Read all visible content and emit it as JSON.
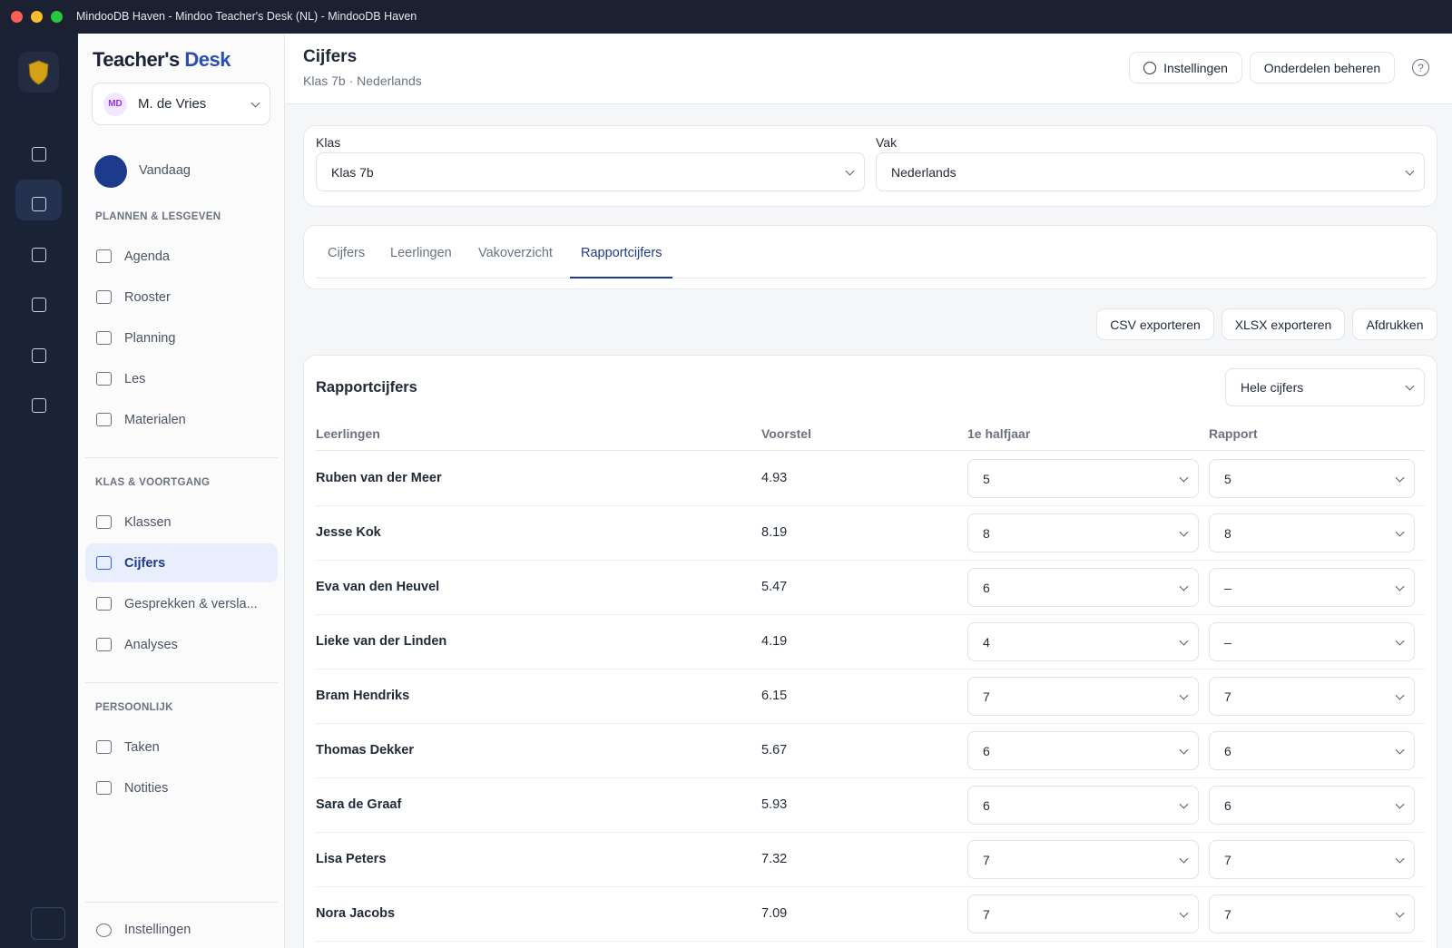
{
  "window": {
    "title": "MindooDB Haven - Mindoo Teacher's Desk (NL) - MindooDB Haven"
  },
  "sidebar": {
    "brand_a": "Teacher's",
    "brand_b": "Desk",
    "user": {
      "initials": "MD",
      "name": "M. de Vries"
    },
    "today": "Vandaag",
    "sections": [
      {
        "title": "PLANNEN & LESGEVEN",
        "items": [
          "Agenda",
          "Rooster",
          "Planning",
          "Les",
          "Materialen"
        ]
      },
      {
        "title": "KLAS & VOORTGANG",
        "items": [
          "Klassen",
          "Cijfers",
          "Gesprekken & versla...",
          "Analyses"
        ]
      },
      {
        "title": "PERSOONLIJK",
        "items": [
          "Taken",
          "Notities"
        ]
      }
    ],
    "footer": "Instellingen"
  },
  "header": {
    "title": "Cijfers",
    "subtitle": "Klas 7b · Nederlands",
    "buttons": [
      "Instellingen",
      "Onderdelen beheren"
    ]
  },
  "filters": [
    {
      "label": "Klas",
      "value": "Klas 7b"
    },
    {
      "label": "Vak",
      "value": "Nederlands"
    }
  ],
  "tabs": [
    "Cijfers",
    "Leerlingen",
    "Vakoverzicht",
    "Rapportcijfers"
  ],
  "exports": [
    "CSV exporteren",
    "XLSX exporteren",
    "Afdrukken"
  ],
  "table": {
    "title": "Rapportcijfers",
    "mode": "Hele cijfers",
    "columns": [
      "Leerlingen",
      "Voorstel",
      "1e halfjaar",
      "Rapport"
    ],
    "rows": [
      [
        "Ruben van der Meer",
        "4.93",
        "5",
        "5"
      ],
      [
        "Jesse Kok",
        "8.19",
        "8",
        "8"
      ],
      [
        "Eva van den Heuvel",
        "5.47",
        "6",
        "–"
      ],
      [
        "Lieke van der Linden",
        "4.19",
        "4",
        "–"
      ],
      [
        "Bram Hendriks",
        "6.15",
        "7",
        "7"
      ],
      [
        "Thomas Dekker",
        "5.67",
        "6",
        "6"
      ],
      [
        "Sara de Graaf",
        "5.93",
        "6",
        "6"
      ],
      [
        "Lisa Peters",
        "7.32",
        "7",
        "7"
      ],
      [
        "Nora Jacobs",
        "7.09",
        "7",
        "7"
      ]
    ]
  }
}
